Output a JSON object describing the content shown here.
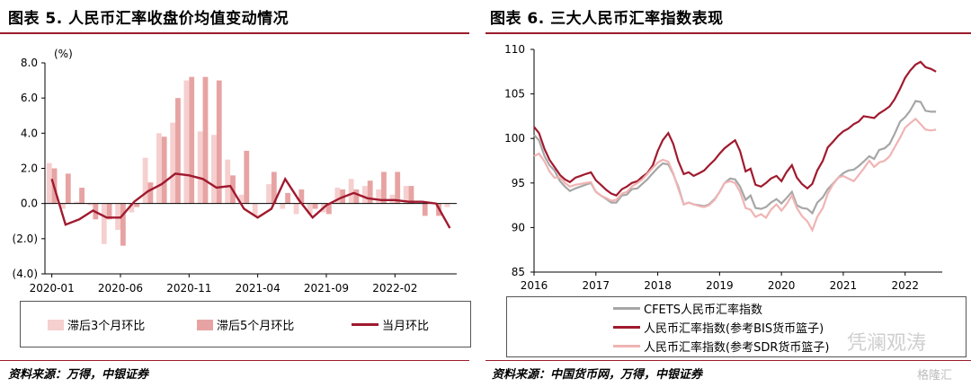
{
  "left": {
    "title": "图表 5. 人民币汇率收盘价均值变动情况",
    "source": "资料来源：万得，中银证券",
    "chart_data": {
      "type": "bar",
      "ylabel": "(%)",
      "ylim": [
        -4,
        8
      ],
      "ytick_labels": [
        "8.0",
        "6.0",
        "4.0",
        "2.0",
        "0.0",
        "(2.0)",
        "(4.0)"
      ],
      "ytick_values": [
        8,
        6,
        4,
        2,
        0,
        -2,
        -4
      ],
      "xtick_labels": [
        "2020-01",
        "2020-06",
        "2020-11",
        "2021-04",
        "2021-09",
        "2022-02"
      ],
      "xtick_index": [
        0,
        5,
        10,
        15,
        20,
        25
      ],
      "n_months": 30,
      "legend": [
        "滞后3个月环比",
        "滞后5个月环比",
        "当月环比"
      ],
      "series": [
        {
          "name": "滞后3个月环比",
          "color": "#f6cfcf",
          "values": [
            2.3,
            -0.3,
            0.1,
            -0.1,
            -2.3,
            -1.5,
            -0.5,
            2.6,
            4.0,
            4.6,
            7.0,
            4.1,
            3.9,
            2.5,
            0.5,
            -0.7,
            1.1,
            -0.3,
            -0.6,
            -0.6,
            -0.5,
            0.9,
            1.4,
            1.0,
            0.8,
            0.5,
            1.0,
            0.0,
            0.0,
            -0.2
          ]
        },
        {
          "name": "滞后5个月环比",
          "color": "#e7a3a3",
          "values": [
            2.0,
            1.7,
            0.9,
            -0.9,
            -0.9,
            -2.4,
            -0.2,
            1.2,
            3.8,
            6.0,
            7.2,
            7.2,
            7.0,
            1.6,
            3.0,
            0.0,
            1.8,
            0.6,
            0.8,
            -0.3,
            -0.6,
            0.8,
            0.8,
            1.3,
            1.8,
            1.8,
            1.0,
            -0.7,
            -0.7,
            0.0
          ]
        },
        {
          "name": "当月环比",
          "color": "#a01a2e",
          "type": "line",
          "values": [
            1.4,
            -1.2,
            -0.9,
            -0.4,
            -0.8,
            -0.8,
            0.1,
            0.7,
            1.1,
            1.7,
            1.6,
            1.4,
            0.9,
            1.0,
            -0.3,
            -0.8,
            -0.3,
            1.4,
            0.2,
            -0.8,
            -0.1,
            0.3,
            0.6,
            0.3,
            0.2,
            0.2,
            0.1,
            0.1,
            0.0,
            -1.4
          ]
        }
      ]
    }
  },
  "right": {
    "title": "图表 6. 三大人民币汇率指数表现",
    "source": "资料来源：中国货币网，万得，中银证券",
    "watermark": "凭澜观涛",
    "watermark_small": "格隆汇",
    "chart_data": {
      "type": "line",
      "ylim": [
        85,
        110
      ],
      "ytick_labels": [
        "110",
        "105",
        "100",
        "95",
        "90",
        "85"
      ],
      "ytick_values": [
        110,
        105,
        100,
        95,
        90,
        85
      ],
      "xtick_labels": [
        "2016",
        "2017",
        "2018",
        "2019",
        "2020",
        "2021",
        "2022"
      ],
      "x_start": 2016,
      "x_end": 2022.6,
      "legend": [
        "CFETS人民币汇率指数",
        "人民币汇率指数(参考BIS货币篮子)",
        "人民币汇率指数(参考SDR货币篮子)"
      ],
      "series": [
        {
          "name": "CFETS人民币汇率指数",
          "color": "#a6a6a6",
          "x": [
            2016.0,
            2016.08,
            2016.17,
            2016.25,
            2016.33,
            2016.42,
            2016.5,
            2016.58,
            2016.67,
            2016.75,
            2016.83,
            2016.92,
            2017.0,
            2017.08,
            2017.17,
            2017.25,
            2017.33,
            2017.42,
            2017.5,
            2017.58,
            2017.67,
            2017.75,
            2017.83,
            2017.92,
            2018.0,
            2018.08,
            2018.17,
            2018.25,
            2018.33,
            2018.42,
            2018.5,
            2018.58,
            2018.67,
            2018.75,
            2018.83,
            2018.92,
            2019.0,
            2019.08,
            2019.17,
            2019.25,
            2019.33,
            2019.42,
            2019.5,
            2019.58,
            2019.67,
            2019.75,
            2019.83,
            2019.92,
            2020.0,
            2020.08,
            2020.17,
            2020.25,
            2020.33,
            2020.42,
            2020.5,
            2020.58,
            2020.67,
            2020.75,
            2020.83,
            2020.92,
            2021.0,
            2021.08,
            2021.17,
            2021.25,
            2021.33,
            2021.42,
            2021.5,
            2021.58,
            2021.67,
            2021.75,
            2021.83,
            2021.92,
            2022.0,
            2022.08,
            2022.17,
            2022.25,
            2022.33,
            2022.42,
            2022.5
          ],
          "values": [
            100.4,
            99.8,
            98.0,
            97.0,
            96.4,
            95.2,
            94.6,
            94.1,
            94.4,
            94.6,
            94.8,
            95.0,
            94.0,
            93.6,
            93.2,
            92.8,
            92.8,
            93.6,
            93.7,
            94.3,
            94.4,
            94.9,
            95.4,
            96.1,
            96.7,
            97.2,
            97.1,
            96.0,
            94.6,
            92.6,
            92.8,
            92.6,
            92.5,
            92.4,
            92.6,
            93.2,
            94.0,
            95.0,
            95.5,
            95.4,
            94.6,
            93.1,
            93.6,
            92.2,
            92.1,
            92.3,
            92.8,
            93.2,
            92.7,
            93.3,
            94.0,
            92.5,
            92.2,
            92.1,
            91.6,
            92.8,
            93.4,
            94.3,
            94.9,
            95.6,
            96.1,
            96.4,
            96.5,
            96.9,
            97.4,
            98.0,
            97.7,
            98.7,
            98.9,
            99.4,
            100.5,
            101.9,
            102.4,
            103.1,
            104.2,
            104.1,
            103.1,
            103.0,
            103.0
          ]
        },
        {
          "name": "人民币汇率指数(参考BIS货币篮子)",
          "color": "#a01a2e",
          "x": [
            2016.0,
            2016.08,
            2016.17,
            2016.25,
            2016.33,
            2016.42,
            2016.5,
            2016.58,
            2016.67,
            2016.75,
            2016.83,
            2016.92,
            2017.0,
            2017.08,
            2017.17,
            2017.25,
            2017.33,
            2017.42,
            2017.5,
            2017.58,
            2017.67,
            2017.75,
            2017.83,
            2017.92,
            2018.0,
            2018.08,
            2018.17,
            2018.25,
            2018.33,
            2018.42,
            2018.5,
            2018.58,
            2018.67,
            2018.75,
            2018.83,
            2018.92,
            2019.0,
            2019.08,
            2019.17,
            2019.25,
            2019.33,
            2019.42,
            2019.5,
            2019.58,
            2019.67,
            2019.75,
            2019.83,
            2019.92,
            2020.0,
            2020.08,
            2020.17,
            2020.25,
            2020.33,
            2020.42,
            2020.5,
            2020.58,
            2020.67,
            2020.75,
            2020.83,
            2020.92,
            2021.0,
            2021.08,
            2021.17,
            2021.25,
            2021.33,
            2021.42,
            2021.5,
            2021.58,
            2021.67,
            2021.75,
            2021.83,
            2021.92,
            2022.0,
            2022.08,
            2022.17,
            2022.25,
            2022.33,
            2022.42,
            2022.5
          ],
          "values": [
            101.3,
            100.6,
            98.8,
            97.6,
            96.8,
            95.9,
            95.4,
            95.1,
            95.6,
            95.8,
            96.0,
            96.2,
            95.3,
            94.8,
            94.2,
            93.8,
            93.6,
            94.3,
            94.6,
            95.0,
            95.2,
            95.7,
            96.1,
            97.0,
            98.6,
            99.8,
            100.6,
            99.4,
            97.5,
            96.0,
            96.2,
            95.8,
            96.1,
            96.4,
            97.0,
            97.6,
            98.3,
            98.9,
            99.4,
            99.8,
            98.6,
            96.3,
            96.6,
            94.8,
            94.6,
            95.0,
            95.5,
            95.8,
            95.2,
            96.2,
            97.0,
            95.6,
            94.9,
            94.4,
            94.9,
            96.4,
            97.5,
            99.0,
            99.6,
            100.3,
            100.8,
            101.1,
            101.6,
            101.9,
            102.5,
            102.4,
            102.3,
            102.8,
            103.2,
            103.6,
            104.4,
            105.6,
            106.8,
            107.6,
            108.3,
            108.6,
            108.0,
            107.8,
            107.5
          ]
        },
        {
          "name": "人民币汇率指数(参考SDR货币篮子)",
          "color": "#f0b4b4",
          "x": [
            2016.0,
            2016.08,
            2016.17,
            2016.25,
            2016.33,
            2016.42,
            2016.5,
            2016.58,
            2016.67,
            2016.75,
            2016.83,
            2016.92,
            2017.0,
            2017.08,
            2017.17,
            2017.25,
            2017.33,
            2017.42,
            2017.5,
            2017.58,
            2017.67,
            2017.75,
            2017.83,
            2017.92,
            2018.0,
            2018.08,
            2018.17,
            2018.25,
            2018.33,
            2018.42,
            2018.5,
            2018.58,
            2018.67,
            2018.75,
            2018.83,
            2018.92,
            2019.0,
            2019.08,
            2019.17,
            2019.25,
            2019.33,
            2019.42,
            2019.5,
            2019.58,
            2019.67,
            2019.75,
            2019.83,
            2019.92,
            2020.0,
            2020.08,
            2020.17,
            2020.25,
            2020.33,
            2020.42,
            2020.5,
            2020.58,
            2020.67,
            2020.75,
            2020.83,
            2020.92,
            2021.0,
            2021.08,
            2021.17,
            2021.25,
            2021.33,
            2021.42,
            2021.5,
            2021.58,
            2021.67,
            2021.75,
            2021.83,
            2021.92,
            2022.0,
            2022.08,
            2022.17,
            2022.25,
            2022.33,
            2022.42,
            2022.5
          ],
          "values": [
            98.0,
            98.3,
            97.4,
            96.3,
            95.6,
            95.6,
            95.0,
            94.6,
            94.8,
            94.9,
            95.0,
            95.1,
            94.0,
            93.6,
            93.3,
            93.0,
            93.1,
            93.8,
            94.0,
            94.6,
            95.0,
            95.4,
            96.0,
            96.7,
            97.3,
            97.6,
            97.4,
            96.1,
            94.4,
            92.6,
            92.8,
            92.6,
            92.4,
            92.3,
            92.5,
            93.1,
            94.0,
            95.0,
            95.2,
            95.0,
            94.0,
            92.2,
            92.0,
            91.2,
            91.5,
            91.1,
            92.0,
            92.6,
            91.9,
            92.6,
            93.6,
            92.2,
            91.3,
            90.7,
            89.7,
            91.2,
            92.2,
            93.8,
            94.8,
            95.6,
            95.8,
            95.5,
            95.2,
            95.9,
            96.6,
            97.5,
            96.8,
            97.3,
            97.5,
            98.0,
            99.0,
            100.1,
            101.2,
            101.7,
            102.2,
            101.6,
            101.0,
            100.9,
            101.0
          ]
        }
      ]
    }
  }
}
